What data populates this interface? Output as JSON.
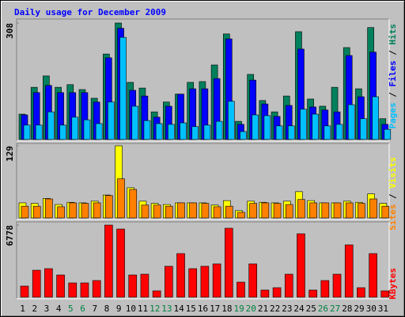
{
  "chart_data": [
    {
      "type": "bar",
      "title": "Daily usage for December 2009",
      "title_color": "#0000ff",
      "ylim": [
        0,
        308
      ],
      "yticks": [
        308
      ],
      "legend_separator": " / ",
      "series": [
        {
          "name": "Hits",
          "color": "#00805c",
          "values": [
            67,
            138,
            168,
            138,
            145,
            132,
            109,
            226,
            308,
            151,
            136,
            73,
            99,
            120,
            151,
            153,
            197,
            279,
            48,
            172,
            103,
            73,
            115,
            285,
            107,
            88,
            138,
            243,
            134,
            296,
            55
          ]
        },
        {
          "name": "Files",
          "color": "#0000ff",
          "values": [
            65,
            124,
            143,
            124,
            124,
            124,
            99,
            216,
            294,
            130,
            115,
            59,
            88,
            120,
            134,
            134,
            161,
            266,
            40,
            157,
            94,
            61,
            90,
            239,
            86,
            78,
            73,
            222,
            113,
            231,
            40
          ]
        },
        {
          "name": "Pages",
          "color": "#00c0ff",
          "values": [
            38,
            38,
            73,
            38,
            59,
            52,
            42,
            99,
            270,
            88,
            50,
            42,
            40,
            44,
            34,
            38,
            48,
            101,
            21,
            65,
            63,
            36,
            36,
            80,
            67,
            36,
            40,
            92,
            55,
            113,
            27
          ]
        }
      ]
    },
    {
      "type": "bar",
      "ylim": [
        0,
        129
      ],
      "yticks": [
        129
      ],
      "legend_separator": " / ",
      "series": [
        {
          "name": "Visits",
          "color": "#ffff00",
          "values": [
            27,
            26,
            35,
            24,
            28,
            27,
            30,
            41,
            129,
            54,
            30,
            26,
            24,
            27,
            27,
            27,
            23,
            31,
            13,
            30,
            28,
            27,
            30,
            47,
            31,
            27,
            27,
            30,
            28,
            43,
            26
          ]
        },
        {
          "name": "Sites",
          "color": "#ff8000",
          "values": [
            21,
            21,
            34,
            20,
            27,
            26,
            27,
            40,
            70,
            51,
            23,
            23,
            21,
            27,
            27,
            26,
            20,
            21,
            10,
            26,
            27,
            26,
            24,
            33,
            27,
            27,
            27,
            27,
            26,
            34,
            21
          ]
        }
      ]
    },
    {
      "type": "bar",
      "ylim": [
        0,
        6778
      ],
      "yticks": [
        6778
      ],
      "categories": [
        "1",
        "2",
        "3",
        "4",
        "5",
        "6",
        "7",
        "8",
        "9",
        "10",
        "11",
        "12",
        "13",
        "14",
        "15",
        "16",
        "17",
        "18",
        "19",
        "20",
        "21",
        "22",
        "23",
        "24",
        "25",
        "26",
        "27",
        "28",
        "29",
        "30",
        "31"
      ],
      "category_colors": [
        "#000000",
        "#000000",
        "#000000",
        "#000000",
        "#008040",
        "#008040",
        "#000000",
        "#000000",
        "#000000",
        "#000000",
        "#000000",
        "#008040",
        "#008040",
        "#000000",
        "#000000",
        "#000000",
        "#000000",
        "#000000",
        "#008040",
        "#008040",
        "#000000",
        "#000000",
        "#000000",
        "#000000",
        "#000000",
        "#008040",
        "#008040",
        "#000000",
        "#000000",
        "#000000",
        "#000000"
      ],
      "series": [
        {
          "name": "KBytes",
          "color": "#ff0000",
          "values": [
            1043,
            2533,
            2682,
            2086,
            1341,
            1341,
            1565,
            6778,
            6405,
            2086,
            2161,
            596,
            2906,
            4098,
            2682,
            2906,
            3130,
            6480,
            1416,
            3130,
            671,
            894,
            2161,
            5960,
            671,
            1565,
            2161,
            4917,
            894,
            4098,
            596
          ]
        }
      ]
    }
  ]
}
